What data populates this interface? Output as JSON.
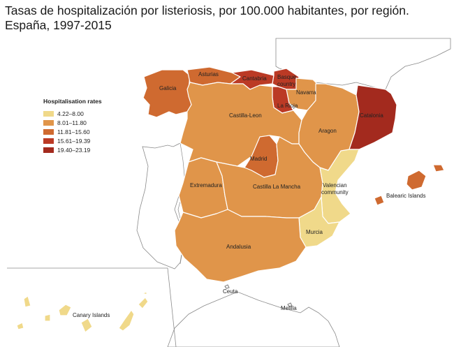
{
  "title": {
    "line1": "Tasas de hospitalización por listeriosis, por 100.000 habitantes, por región.",
    "line2": "España, 1997-2015"
  },
  "legend": {
    "title": "Hospitalisation rates",
    "classes": [
      {
        "label": "4.22–8.00",
        "color": "#f0d98a"
      },
      {
        "label": "8.01–11.80",
        "color": "#e0954a"
      },
      {
        "label": "11.81–15.60",
        "color": "#cf6a30"
      },
      {
        "label": "15.61–19.39",
        "color": "#bb3a25"
      },
      {
        "label": "19.40–23.19",
        "color": "#a32a1e"
      }
    ]
  },
  "map": {
    "sea_color": "#ffffff",
    "neighbor_fill": "#ffffff",
    "border_color": "#8a8a8a",
    "regions": [
      {
        "key": "galicia",
        "label": "Galicia",
        "rate_class": 2
      },
      {
        "key": "asturias",
        "label": "Asturias",
        "rate_class": 2
      },
      {
        "key": "cantabria",
        "label": "Cantabria",
        "rate_class": 3
      },
      {
        "key": "basque",
        "label": "Basque country",
        "rate_class": 3
      },
      {
        "key": "navarra",
        "label": "Navarra",
        "rate_class": 1
      },
      {
        "key": "larioja",
        "label": "La Rioja",
        "rate_class": 3
      },
      {
        "key": "castilla_leon",
        "label": "Castilla-Leon",
        "rate_class": 1
      },
      {
        "key": "aragon",
        "label": "Aragon",
        "rate_class": 1
      },
      {
        "key": "catalonia",
        "label": "Catalonia",
        "rate_class": 4
      },
      {
        "key": "madrid",
        "label": "Madrid",
        "rate_class": 2
      },
      {
        "key": "extremadura",
        "label": "Extremadura",
        "rate_class": 1
      },
      {
        "key": "castilla_la_mancha",
        "label": "Castilla La Mancha",
        "rate_class": 1
      },
      {
        "key": "valencia",
        "label": "Valencian community",
        "rate_class": 0
      },
      {
        "key": "murcia",
        "label": "Murcia",
        "rate_class": 0
      },
      {
        "key": "andalusia",
        "label": "Andalusia",
        "rate_class": 1
      },
      {
        "key": "balearic",
        "label": "Balearic Islands",
        "rate_class": 2
      },
      {
        "key": "canary",
        "label": "Canary Islands",
        "rate_class": 0
      },
      {
        "key": "ceuta",
        "label": "Ceuta",
        "rate_class": null
      },
      {
        "key": "melilla",
        "label": "Melilla",
        "rate_class": null
      }
    ]
  }
}
